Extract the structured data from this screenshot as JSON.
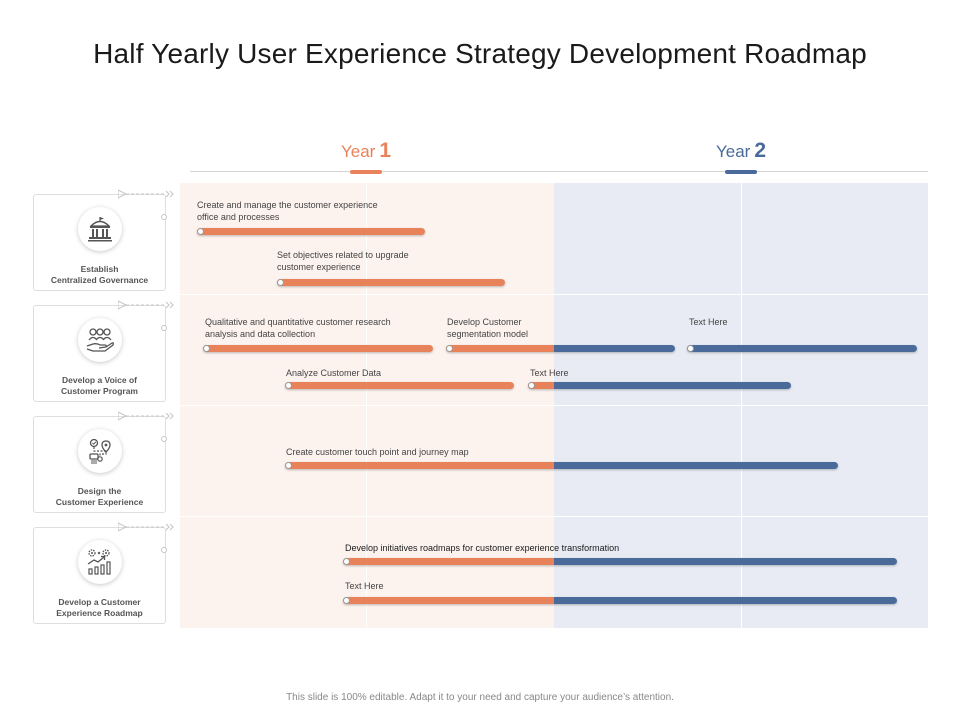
{
  "title": "Half Yearly User Experience Strategy Development Roadmap",
  "colors": {
    "year1": "#e8825a",
    "year2": "#4a6b9a"
  },
  "years": [
    {
      "label": "Year",
      "number": "1"
    },
    {
      "label": "Year",
      "number": "2"
    }
  ],
  "rows": [
    {
      "label_line1": "Establish",
      "label_line2": "Centralized Governance",
      "icon": "government-building-icon"
    },
    {
      "label_line1": "Develop a Voice of",
      "label_line2": "Customer Program",
      "icon": "people-in-hand-icon"
    },
    {
      "label_line1": "Design the",
      "label_line2": "Customer Experience",
      "icon": "journey-map-icon"
    },
    {
      "label_line1": "Develop a Customer",
      "label_line2": "Experience Roadmap",
      "icon": "growth-chart-gears-icon"
    }
  ],
  "tasks": [
    {
      "line1": "Create and manage the customer experience",
      "line2": "office and processes"
    },
    {
      "line1": "Set objectives related to upgrade",
      "line2": "customer experience"
    },
    {
      "line1": "Qualitative and quantitative customer research",
      "line2": "analysis and data collection"
    },
    {
      "line1": "Develop Customer",
      "line2": "segmentation model"
    },
    {
      "line1": "Text Here"
    },
    {
      "line1": "Analyze Customer Data"
    },
    {
      "line1": "Text Here"
    },
    {
      "line1": "Create customer touch point and journey map"
    },
    {
      "line1": "Develop initiatives roadmaps for customer experience transformation"
    },
    {
      "line1": "Text Here"
    }
  ],
  "footer": "This slide is 100% editable. Adapt it to your need and capture your audience’s attention."
}
